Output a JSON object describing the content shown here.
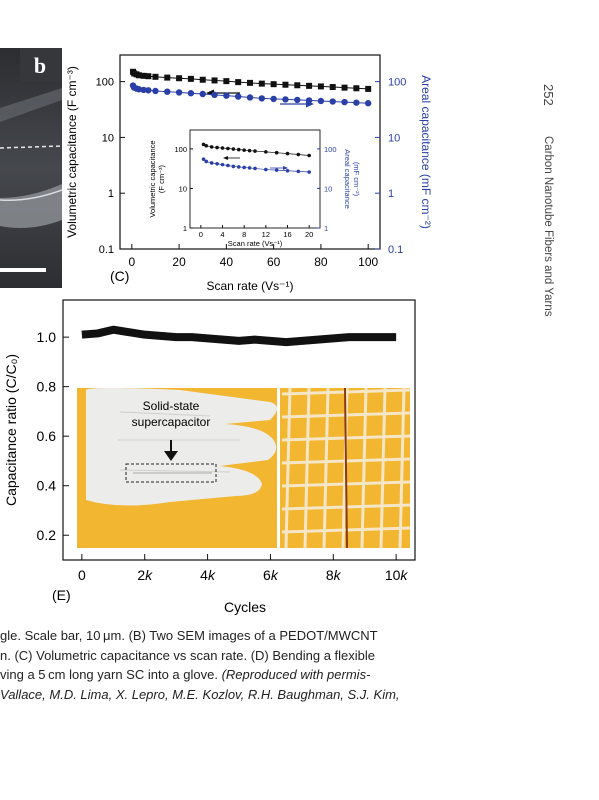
{
  "figure_panel_b": {
    "letter": "b",
    "colors": {
      "background": "#3a3c40",
      "highlight": "#c9ccd1"
    }
  },
  "chart_data": [
    {
      "type": "scatter",
      "panel_label": "(C)",
      "xlabel": "Scan rate (Vs⁻¹)",
      "ylabel": "Volumetric capacitance (F cm⁻³)",
      "y2label": "Areal capacitance (mF cm⁻²)",
      "xlim": [
        -5,
        105
      ],
      "ylim": [
        0.1,
        300
      ],
      "y2lim": [
        0.1,
        300
      ],
      "yscale": "log",
      "x_ticks": [
        "0",
        "20",
        "40",
        "60",
        "80",
        "100"
      ],
      "y_ticks": [
        "0.1",
        "1",
        "10",
        "100"
      ],
      "y2_ticks": [
        "0.1",
        "1",
        "10",
        "100"
      ],
      "series": [
        {
          "color": "#111111",
          "marker": "square",
          "axis": "left",
          "x": [
            0.5,
            1,
            2,
            3,
            5,
            7,
            10,
            15,
            20,
            25,
            30,
            35,
            40,
            45,
            50,
            55,
            60,
            65,
            70,
            75,
            80,
            85,
            90,
            95,
            100
          ],
          "y": [
            150,
            140,
            135,
            130,
            127,
            125,
            122,
            118,
            115,
            112,
            108,
            105,
            102,
            98,
            95,
            92,
            90,
            88,
            86,
            84,
            82,
            80,
            78,
            76,
            74
          ]
        },
        {
          "color": "#2a3fa8",
          "marker": "circle",
          "axis": "right",
          "x": [
            0.5,
            1,
            2,
            3,
            5,
            7,
            10,
            15,
            20,
            25,
            30,
            35,
            40,
            45,
            50,
            55,
            60,
            65,
            70,
            75,
            80,
            85,
            90,
            95,
            100
          ],
          "y": [
            85,
            78,
            75,
            73,
            71,
            70,
            68,
            66,
            64,
            62,
            60,
            58,
            56,
            54,
            52,
            50,
            49,
            48,
            47,
            46,
            45,
            44,
            43,
            42,
            41
          ]
        }
      ],
      "inset": {
        "xlabel": "Scan rate (Vs⁻¹)",
        "ylabel_line1": "Volumetric capacitance",
        "ylabel_line2": "(F cm⁻³)",
        "y2label_line1": "Areal capacitance",
        "y2label_line2": "(mF cm⁻²)",
        "xlim": [
          -2,
          22
        ],
        "ylim": [
          1,
          300
        ],
        "x_ticks": [
          "0",
          "4",
          "8",
          "12",
          "16",
          "20"
        ],
        "y_ticks": [
          "1",
          "10",
          "100"
        ],
        "y2_ticks": [
          "1",
          "10",
          "100"
        ],
        "series": [
          {
            "color": "#111111",
            "marker": "circle",
            "x": [
              0.5,
              1,
              2,
              3,
              4,
              5,
              6,
              7,
              8,
              9,
              10,
              12,
              14,
              16,
              18,
              20
            ],
            "y": [
              130,
              120,
              112,
              108,
              105,
              102,
              99,
              96,
              93,
              90,
              88,
              84,
              80,
              76,
              72,
              68
            ]
          },
          {
            "color": "#2a3fa8",
            "marker": "circle",
            "x": [
              0.5,
              1,
              2,
              3,
              4,
              5,
              6,
              7,
              8,
              9,
              10,
              12,
              14,
              16,
              18,
              20
            ],
            "y": [
              55,
              48,
              44,
              42,
              40,
              38,
              36,
              35,
              34,
              33,
              32,
              30,
              29,
              28,
              27,
              26
            ]
          }
        ]
      },
      "colors": {
        "left_axis": "#111111",
        "right_axis": "#2a3fa8"
      }
    },
    {
      "type": "line",
      "panel_label": "(E)",
      "xlabel": "Cycles",
      "ylabel": "Capacitance ratio (C/C₀)",
      "xlim": [
        -600,
        10600
      ],
      "ylim": [
        0.1,
        1.15
      ],
      "x_ticks": [
        "0",
        "2k",
        "4k",
        "6k",
        "8k",
        "10k"
      ],
      "y_ticks": [
        "0.2",
        "0.4",
        "0.6",
        "0.8",
        "1.0"
      ],
      "series": [
        {
          "color": "#111111",
          "x": [
            0,
            500,
            1000,
            1500,
            2000,
            2500,
            3000,
            3500,
            4000,
            4500,
            5000,
            5500,
            6000,
            6500,
            7000,
            7500,
            8000,
            8500,
            9000,
            9500,
            10000
          ],
          "y": [
            1.01,
            1.015,
            1.03,
            1.02,
            1.01,
            1.005,
            1.0,
            1.0,
            0.995,
            0.99,
            0.985,
            0.99,
            0.985,
            0.98,
            0.985,
            0.99,
            0.995,
            1.0,
            1.0,
            1.0,
            1.0
          ]
        }
      ],
      "inset_photo": {
        "label_line1": "Solid-state",
        "label_line2": "supercapacitor",
        "colors": {
          "background": "#f2b630",
          "glove": "#ececea",
          "mesh": "#f4e6c6"
        }
      }
    }
  ],
  "caption": {
    "line1": "gle. Scale bar, 10 μm. (B) Two SEM images of a PEDOT/MWCNT",
    "line2": "n. (C) Volumetric capacitance vs scan rate. (D) Bending a flexible",
    "line3_plain": "ving a 5 cm long yarn SC into a glove. ",
    "line3_italic": "(Reproduced with permis-",
    "line4_italic": "Vallace, M.D. Lima, X. Lepro, M.E. Kozlov, R.H. Baughman, S.J. Kim,"
  },
  "running_head": {
    "page_number": "252",
    "title": "Carbon Nanotube Fibers and Yarns"
  }
}
